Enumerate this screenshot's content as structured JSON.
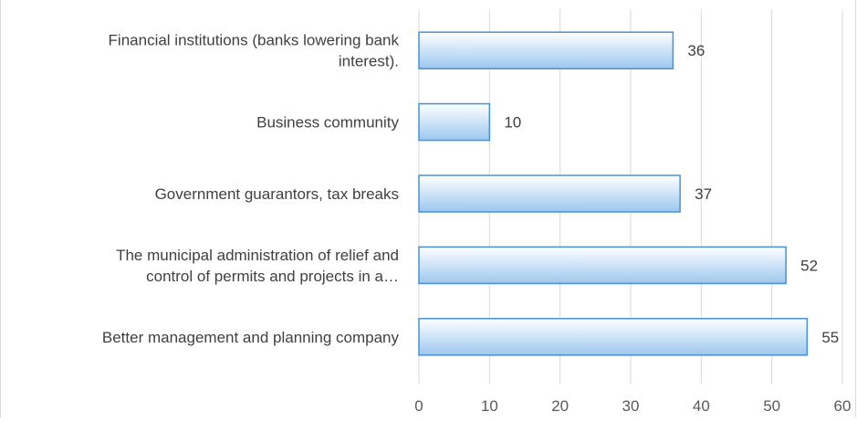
{
  "chart_data": {
    "type": "bar",
    "orientation": "horizontal",
    "title": "",
    "xlabel": "",
    "ylabel": "",
    "categories": [
      [
        "Financial institutions (banks lowering bank",
        "interest)."
      ],
      [
        "Business community"
      ],
      [
        "Government guarantors, tax breaks"
      ],
      [
        "The municipal administration of relief and",
        "control of permits and projects in a…"
      ],
      [
        "Better management and planning company"
      ]
    ],
    "values": [
      36,
      10,
      37,
      52,
      55
    ],
    "data_labels": [
      "36",
      "10",
      "37",
      "52",
      "55"
    ],
    "xlim": [
      0,
      60
    ],
    "x_ticks": [
      "0",
      "10",
      "20",
      "30",
      "40",
      "50",
      "60"
    ],
    "grid": "vertical",
    "legend": "none",
    "colors": {
      "bar_fill_top": "#ffffff",
      "bar_fill_bottom": "#9cc8f0",
      "bar_stroke": "#4a90d9",
      "grid": "#d9d9d9",
      "border": "#d9d9d9"
    }
  }
}
